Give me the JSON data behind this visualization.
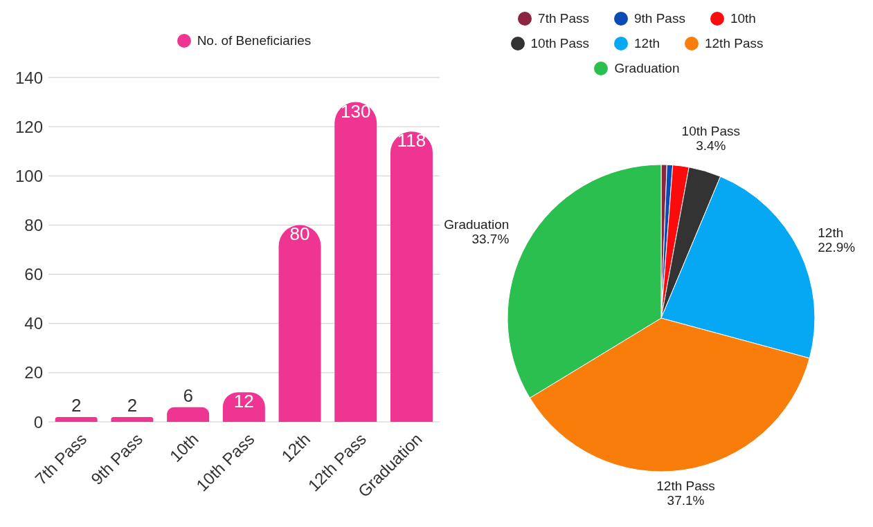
{
  "chart_data": [
    {
      "type": "bar",
      "categories": [
        "7th Pass",
        "9th Pass",
        "10th",
        "10th Pass",
        "12th",
        "12th Pass",
        "Graduation"
      ],
      "series": [
        {
          "name": "No. of Beneficiaries",
          "color": "#ee3592",
          "values": [
            2,
            2,
            6,
            12,
            80,
            130,
            118
          ]
        }
      ],
      "ylim": [
        0,
        140
      ],
      "yticks": [
        0,
        20,
        40,
        60,
        80,
        100,
        120,
        140
      ],
      "grid": "y",
      "legend": "top",
      "data_labels": true
    },
    {
      "type": "pie",
      "categories": [
        "7th Pass",
        "9th Pass",
        "10th",
        "10th Pass",
        "12th",
        "12th Pass",
        "Graduation"
      ],
      "values": [
        0.6,
        0.6,
        1.7,
        3.4,
        22.9,
        37.1,
        33.7
      ],
      "colors": [
        "#8b2540",
        "#0b4bb5",
        "#fb0b0b",
        "#333333",
        "#07a8f3",
        "#f97d0b",
        "#2bbf50"
      ],
      "value_labels": [
        null,
        null,
        null,
        "3.4%",
        "22.9%",
        "37.1%",
        "33.7%"
      ],
      "legend": "top"
    }
  ]
}
